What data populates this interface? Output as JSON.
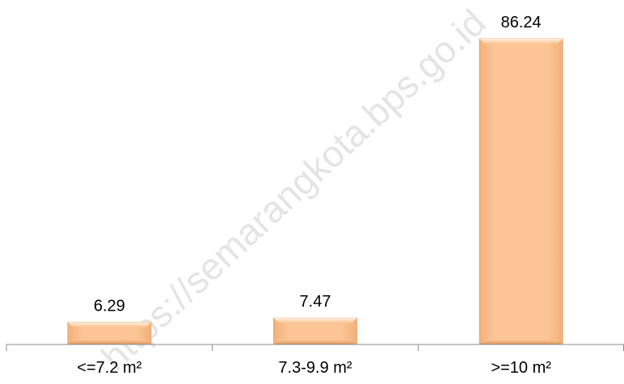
{
  "chart_data": {
    "type": "bar",
    "categories": [
      "<=7.2 m²",
      "7.3-9.9 m²",
      ">=10 m²"
    ],
    "values": [
      6.29,
      7.47,
      86.24
    ],
    "data_labels": [
      "6.29",
      "7.47",
      "86.24"
    ],
    "ylim": [
      0,
      86.24
    ],
    "grid": false,
    "legend": "none",
    "bar_color": "#FBC596",
    "bar_edge_color": "#E2A06A",
    "axis_color": "#8C8C8C"
  },
  "watermark": "https://semarangkota.bps.go.id"
}
